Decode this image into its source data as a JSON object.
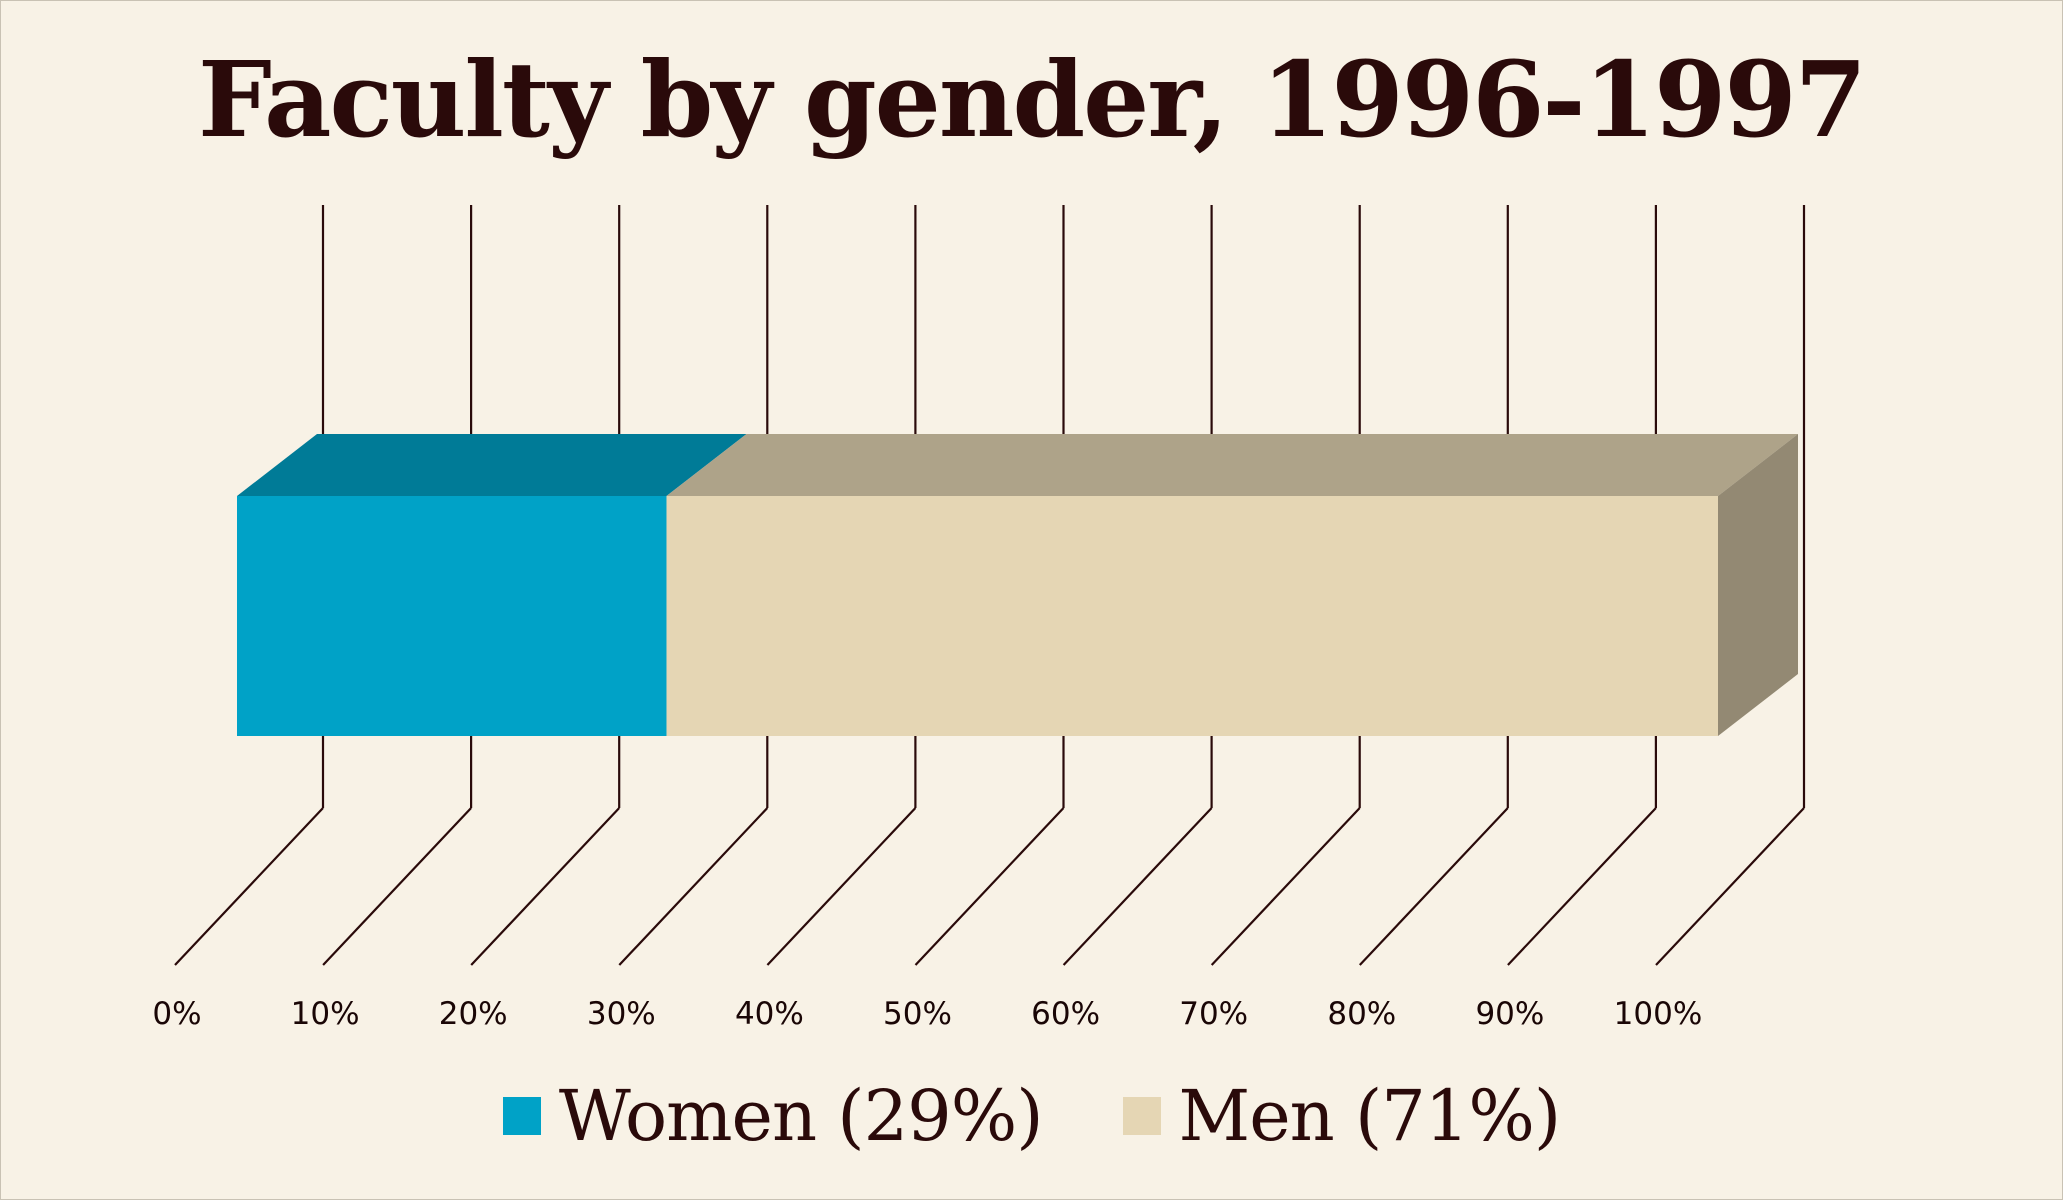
{
  "chart_data": {
    "type": "bar",
    "orientation": "horizontal",
    "stacked": true,
    "percent_stacked": true,
    "title": "Faculty by gender, 1996-1997",
    "xlim": [
      0,
      100
    ],
    "x_ticks": [
      "0%",
      "10%",
      "20%",
      "30%",
      "40%",
      "50%",
      "60%",
      "70%",
      "80%",
      "90%",
      "100%"
    ],
    "grid": true,
    "legend_position": "bottom",
    "series": [
      {
        "name": "Women (29%)",
        "values": [
          29
        ],
        "color": "#00a2c7"
      },
      {
        "name": "Men (71%)",
        "values": [
          71
        ],
        "color": "#e5d6b4"
      }
    ]
  }
}
